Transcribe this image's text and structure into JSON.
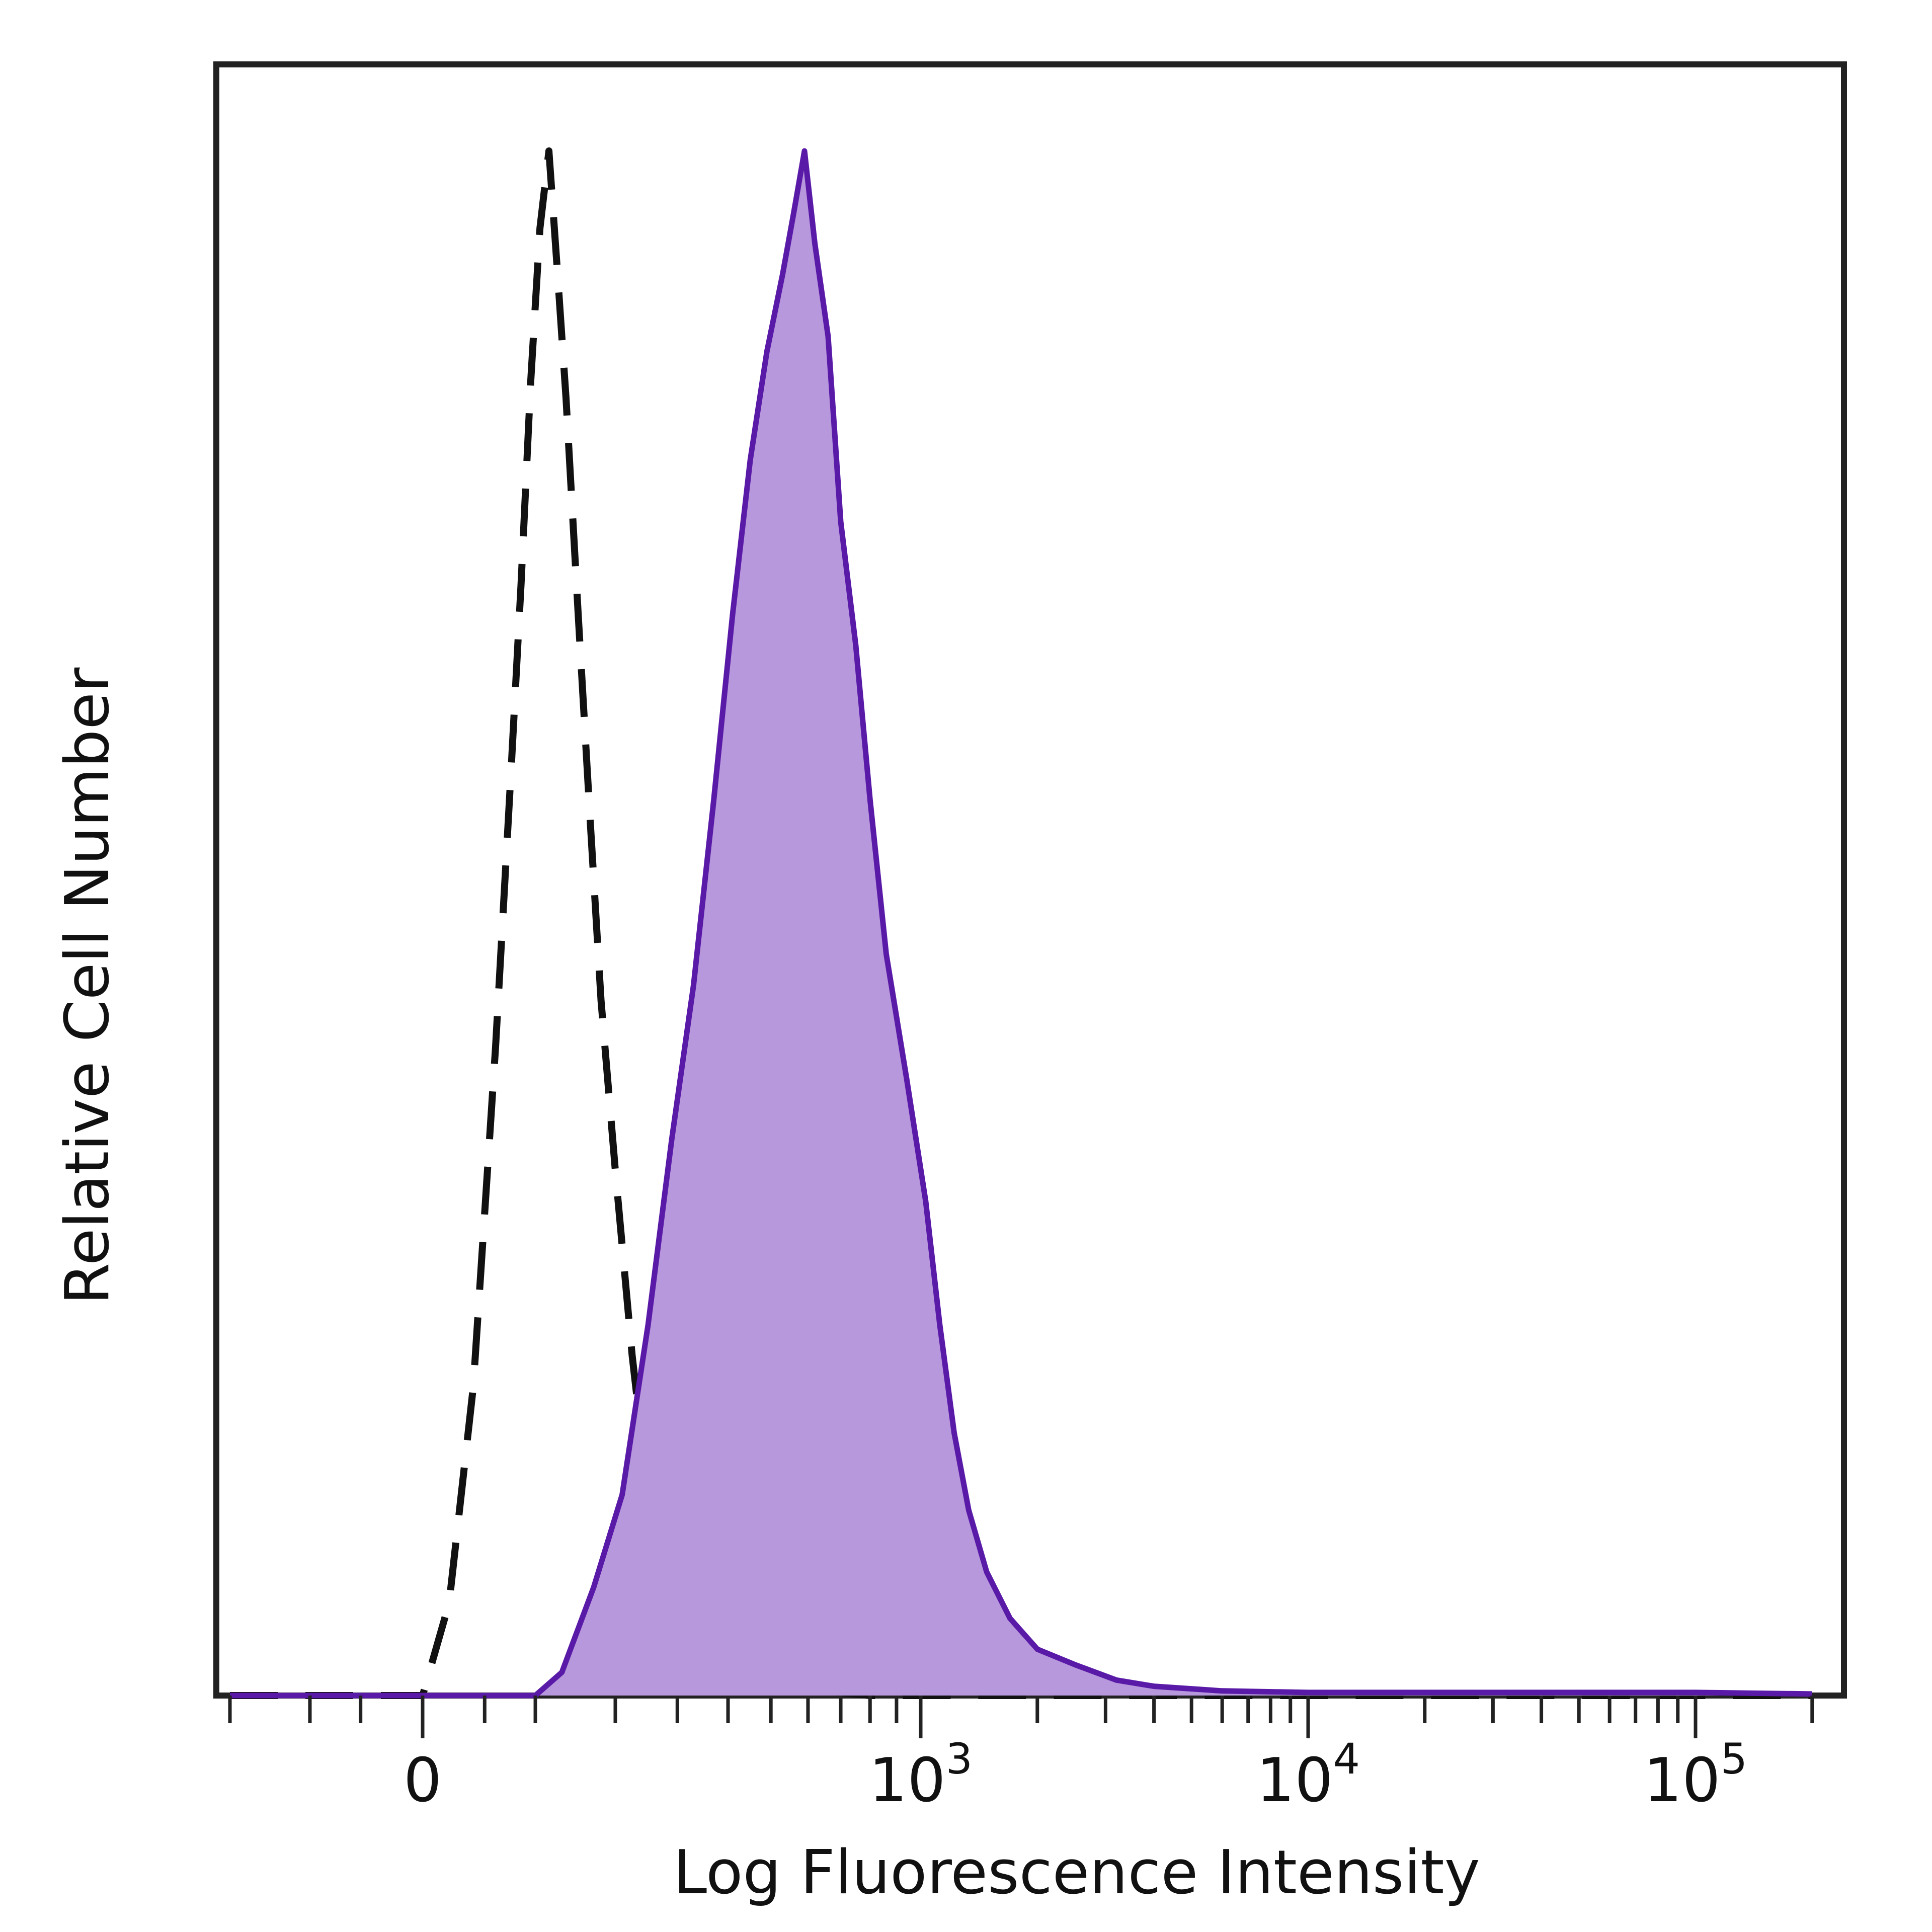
{
  "chart_data": {
    "type": "area",
    "title": "",
    "xlabel": "Log Fluorescence Intensity",
    "ylabel": "Relative Cell Number",
    "x_scale": "biexponential",
    "x_ticks": [
      {
        "value": 0,
        "base": "0",
        "exp": ""
      },
      {
        "value": 1000,
        "base": "10",
        "exp": "3"
      },
      {
        "value": 10000,
        "base": "10",
        "exp": "4"
      },
      {
        "value": 100000,
        "base": "10",
        "exp": "5"
      }
    ],
    "ylim": [
      0,
      100
    ],
    "grid": false,
    "legend": "none",
    "series": [
      {
        "style": "dashed-outline",
        "color": "#111111",
        "points": [
          [
            -200,
            0
          ],
          [
            -100,
            0
          ],
          [
            -20,
            0
          ],
          [
            0,
            0
          ],
          [
            20,
            6
          ],
          [
            40,
            20
          ],
          [
            60,
            42
          ],
          [
            75,
            60
          ],
          [
            85,
            72
          ],
          [
            95,
            85
          ],
          [
            105,
            95
          ],
          [
            115,
            100
          ],
          [
            125,
            92
          ],
          [
            135,
            84
          ],
          [
            150,
            70
          ],
          [
            165,
            57
          ],
          [
            180,
            45
          ],
          [
            200,
            34
          ],
          [
            225,
            22
          ],
          [
            250,
            13
          ],
          [
            280,
            7
          ],
          [
            320,
            4
          ],
          [
            370,
            2
          ],
          [
            450,
            1
          ],
          [
            600,
            0.4
          ],
          [
            800,
            0
          ],
          [
            1000,
            0
          ],
          [
            5000,
            0
          ],
          [
            20000,
            0
          ],
          [
            200000,
            0
          ]
        ]
      },
      {
        "style": "filled",
        "color": "#5a1aa8",
        "fill": "#b798dc",
        "points": [
          [
            -200,
            0
          ],
          [
            0,
            0
          ],
          [
            100,
            0
          ],
          [
            130,
            1.5
          ],
          [
            170,
            7
          ],
          [
            210,
            13
          ],
          [
            250,
            24
          ],
          [
            290,
            36
          ],
          [
            330,
            46
          ],
          [
            370,
            58
          ],
          [
            410,
            70
          ],
          [
            450,
            80
          ],
          [
            490,
            87
          ],
          [
            530,
            92
          ],
          [
            560,
            96
          ],
          [
            590,
            100
          ],
          [
            620,
            94
          ],
          [
            660,
            88
          ],
          [
            700,
            76
          ],
          [
            750,
            68
          ],
          [
            800,
            58
          ],
          [
            860,
            48
          ],
          [
            940,
            40
          ],
          [
            1030,
            32
          ],
          [
            1120,
            24
          ],
          [
            1220,
            17
          ],
          [
            1330,
            12
          ],
          [
            1480,
            8
          ],
          [
            1700,
            5
          ],
          [
            2000,
            3
          ],
          [
            2500,
            2
          ],
          [
            3200,
            1
          ],
          [
            4000,
            0.6
          ],
          [
            6000,
            0.3
          ],
          [
            10000,
            0.2
          ],
          [
            20000,
            0.2
          ],
          [
            50000,
            0.2
          ],
          [
            100000,
            0.2
          ],
          [
            200000,
            0.1
          ]
        ]
      }
    ]
  }
}
